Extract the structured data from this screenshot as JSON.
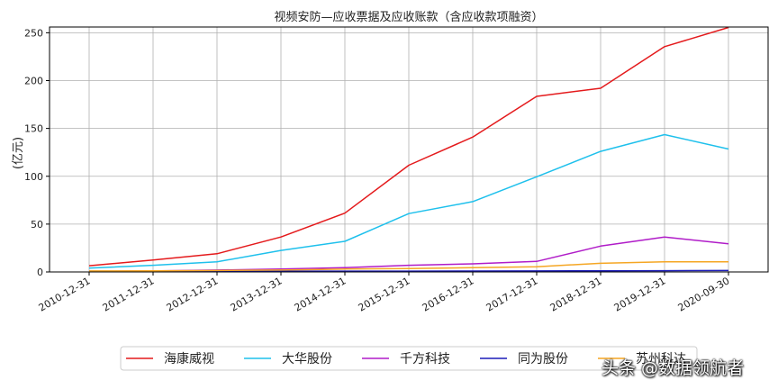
{
  "chart_data": {
    "type": "line",
    "title": "视频安防—应收票据及应收账款（含应收款项融资）",
    "xlabel": "",
    "ylabel": "(亿元)",
    "ylim": [
      0,
      256
    ],
    "yticks": [
      0,
      50,
      100,
      150,
      200,
      250
    ],
    "grid": true,
    "legend_position": "bottom",
    "categories": [
      "2010-12-31",
      "2011-12-31",
      "2012-12-31",
      "2013-12-31",
      "2014-12-31",
      "2015-12-31",
      "2016-12-31",
      "2017-12-31",
      "2018-12-31",
      "2019-12-31",
      "2020-09-30"
    ],
    "series": [
      {
        "name": "海康威视",
        "color": "#e41a1c",
        "values": [
          6.5,
          12.5,
          19,
          36.5,
          61.5,
          111.5,
          141,
          183.5,
          192,
          235.5,
          255.5
        ]
      },
      {
        "name": "大华股份",
        "color": "#1ec0ec",
        "values": [
          4,
          7,
          10.5,
          22.5,
          32,
          61,
          73.5,
          99.5,
          126,
          143.5,
          128.5
        ]
      },
      {
        "name": "千方科技",
        "color": "#b01cc8",
        "values": [
          0.5,
          1,
          2,
          3,
          4.5,
          7,
          8.5,
          11,
          27,
          36.5,
          29.5
        ]
      },
      {
        "name": "同为股份",
        "color": "#1c1cb8",
        "values": [
          0.8,
          0.8,
          0.8,
          0.8,
          0.8,
          0.8,
          0.9,
          1,
          1.2,
          1.3,
          1.5
        ]
      },
      {
        "name": "苏州科达",
        "color": "#f5a623",
        "values": [
          1,
          1.2,
          1.5,
          2,
          3,
          3.5,
          4.5,
          5.5,
          9,
          10.5,
          10.5
        ]
      }
    ]
  },
  "watermark": "头条 @数据领航者"
}
